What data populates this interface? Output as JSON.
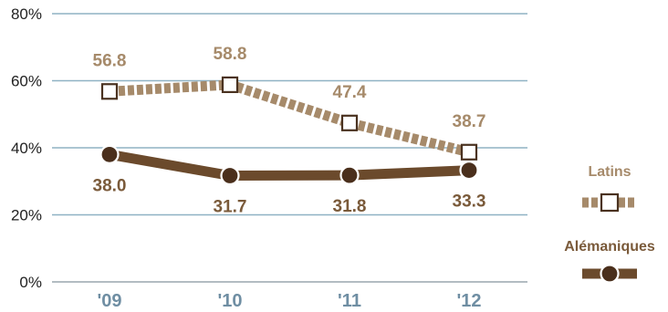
{
  "chart_data": {
    "type": "line",
    "categories": [
      "'09",
      "'10",
      "'11",
      "'12"
    ],
    "yticks": [
      "0%",
      "20%",
      "40%",
      "60%",
      "80%"
    ],
    "ylim": [
      0,
      80
    ],
    "grid": true,
    "legend_position": "right",
    "series": [
      {
        "name": "Latins",
        "values": [
          56.8,
          58.8,
          47.4,
          38.7
        ],
        "labels": [
          "56.8",
          "58.8",
          "47.4",
          "38.7"
        ],
        "color": "#a68a6a",
        "style": "dashed",
        "marker": "square"
      },
      {
        "name": "Alémaniques",
        "values": [
          38.0,
          31.7,
          31.8,
          33.3
        ],
        "labels": [
          "38.0",
          "31.7",
          "31.8",
          "33.3"
        ],
        "color": "#6b4a2c",
        "style": "solid",
        "marker": "circle"
      }
    ]
  },
  "colors": {
    "grid": "#8fb2c4",
    "xtick": "#6f8ea3",
    "label_latins": "#a68a6a",
    "label_alemaniques": "#7a5a3a"
  }
}
